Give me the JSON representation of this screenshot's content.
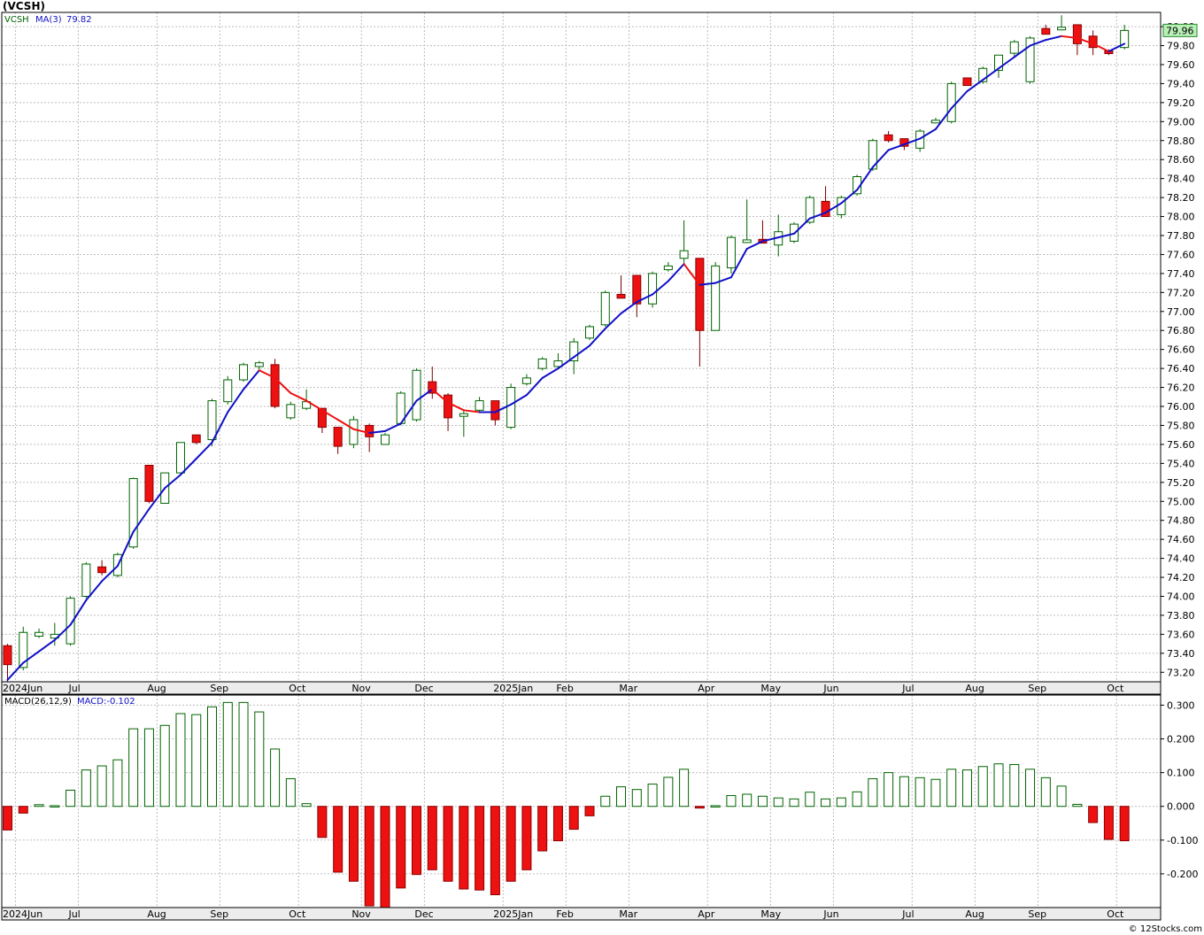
{
  "title": "(VCSH)",
  "watermark": "© 12Stocks.com",
  "price_legend": {
    "symbol": "VCSH",
    "ma_label": "MA(3)",
    "ma_value": "79.82"
  },
  "macd_legend": {
    "label": "MACD(26,12,9)",
    "value_label": "MACD:-0.102"
  },
  "last_price_badge": "79.96",
  "colors": {
    "up": "#006400",
    "down": "#ee1111",
    "ma_up": "#1010c8",
    "ma_down": "#ee1111",
    "grid": "#bdbdbd"
  },
  "price_ticks": [
    "80.00",
    "79.80",
    "79.60",
    "79.40",
    "79.20",
    "79.00",
    "78.80",
    "78.60",
    "78.40",
    "78.20",
    "78.00",
    "77.80",
    "77.60",
    "77.40",
    "77.20",
    "77.00",
    "76.80",
    "76.60",
    "76.40",
    "76.20",
    "76.00",
    "75.80",
    "75.60",
    "75.40",
    "75.20",
    "75.00",
    "74.80",
    "74.60",
    "74.40",
    "74.20",
    "74.00",
    "73.80",
    "73.60",
    "73.40",
    "73.20"
  ],
  "macd_ticks": [
    "0.300",
    "0.200",
    "0.100",
    "0.000",
    "-0.100",
    "-0.200"
  ],
  "month_labels": [
    {
      "label": "2024Jun",
      "week": 1
    },
    {
      "label": "Jul",
      "week": 5
    },
    {
      "label": "Aug",
      "week": 10
    },
    {
      "label": "Sep",
      "week": 14
    },
    {
      "label": "Oct",
      "week": 19
    },
    {
      "label": "Nov",
      "week": 23
    },
    {
      "label": "Dec",
      "week": 27
    },
    {
      "label": "2025Jan",
      "week": 32
    },
    {
      "label": "Feb",
      "week": 36
    },
    {
      "label": "Mar",
      "week": 40
    },
    {
      "label": "Apr",
      "week": 45
    },
    {
      "label": "May",
      "week": 49
    },
    {
      "label": "Jun",
      "week": 53
    },
    {
      "label": "Jul",
      "week": 58
    },
    {
      "label": "Aug",
      "week": 62
    },
    {
      "label": "Sep",
      "week": 66
    },
    {
      "label": "Oct",
      "week": 71
    }
  ],
  "chart_data": [
    {
      "type": "candlestick",
      "ylim": [
        73.1,
        80.15
      ],
      "grid": true,
      "x_unit": "week index (72 weekly candles, Jun 2024 - Oct 2025)",
      "candles": [
        [
          73.48,
          73.5,
          73.1,
          73.28
        ],
        [
          73.25,
          73.68,
          73.22,
          73.62
        ],
        [
          73.58,
          73.66,
          73.56,
          73.62
        ],
        [
          73.56,
          73.72,
          73.48,
          73.6
        ],
        [
          73.5,
          74.0,
          73.48,
          73.98
        ],
        [
          74.0,
          74.36,
          73.98,
          74.34
        ],
        [
          74.31,
          74.38,
          74.22,
          74.25
        ],
        [
          74.22,
          74.46,
          74.2,
          74.44
        ],
        [
          74.52,
          75.25,
          74.5,
          75.24
        ],
        [
          75.38,
          75.38,
          74.98,
          75.0
        ],
        [
          74.98,
          75.3,
          74.98,
          75.3
        ],
        [
          75.3,
          75.62,
          75.28,
          75.62
        ],
        [
          75.7,
          75.7,
          75.6,
          75.62
        ],
        [
          75.65,
          76.08,
          75.58,
          76.06
        ],
        [
          76.05,
          76.32,
          76.02,
          76.28
        ],
        [
          76.28,
          76.46,
          76.26,
          76.44
        ],
        [
          76.42,
          76.48,
          76.38,
          76.46
        ],
        [
          76.44,
          76.5,
          75.98,
          76.0
        ],
        [
          75.88,
          76.05,
          75.86,
          76.02
        ],
        [
          75.98,
          76.18,
          75.96,
          76.05
        ],
        [
          75.98,
          75.98,
          75.72,
          75.78
        ],
        [
          75.78,
          75.78,
          75.5,
          75.58
        ],
        [
          75.6,
          75.9,
          75.56,
          75.86
        ],
        [
          75.8,
          75.82,
          75.52,
          75.68
        ],
        [
          75.6,
          75.72,
          75.6,
          75.7
        ],
        [
          75.82,
          76.16,
          75.8,
          76.14
        ],
        [
          75.86,
          76.4,
          75.84,
          76.38
        ],
        [
          76.26,
          76.42,
          76.08,
          76.14
        ],
        [
          76.12,
          76.14,
          75.74,
          75.88
        ],
        [
          75.9,
          75.96,
          75.68,
          75.92
        ],
        [
          75.96,
          76.1,
          75.94,
          76.06
        ],
        [
          76.06,
          76.06,
          75.8,
          75.86
        ],
        [
          75.78,
          76.24,
          75.76,
          76.2
        ],
        [
          76.24,
          76.34,
          76.22,
          76.3
        ],
        [
          76.4,
          76.52,
          76.38,
          76.5
        ],
        [
          76.42,
          76.56,
          76.4,
          76.48
        ],
        [
          76.48,
          76.72,
          76.34,
          76.68
        ],
        [
          76.72,
          76.86,
          76.7,
          76.84
        ],
        [
          76.86,
          77.22,
          76.84,
          77.2
        ],
        [
          77.18,
          77.38,
          77.14,
          77.14
        ],
        [
          77.38,
          77.38,
          76.94,
          77.08
        ],
        [
          77.08,
          77.42,
          77.04,
          77.4
        ],
        [
          77.44,
          77.52,
          77.42,
          77.48
        ],
        [
          77.56,
          77.96,
          77.5,
          77.64
        ],
        [
          77.56,
          77.56,
          76.42,
          76.8
        ],
        [
          76.8,
          77.52,
          76.8,
          77.48
        ],
        [
          77.46,
          77.8,
          77.4,
          77.78
        ],
        [
          77.74,
          78.18,
          77.72,
          77.74
        ],
        [
          77.76,
          77.96,
          77.72,
          77.72
        ],
        [
          77.7,
          78.02,
          77.58,
          77.84
        ],
        [
          77.74,
          77.94,
          77.72,
          77.92
        ],
        [
          77.94,
          78.22,
          77.92,
          78.2
        ],
        [
          78.16,
          78.32,
          78.0,
          78.0
        ],
        [
          78.02,
          78.22,
          77.98,
          78.2
        ],
        [
          78.24,
          78.44,
          78.22,
          78.42
        ],
        [
          78.5,
          78.82,
          78.48,
          78.8
        ],
        [
          78.86,
          78.9,
          78.78,
          78.8
        ],
        [
          78.82,
          78.82,
          78.7,
          78.74
        ],
        [
          78.72,
          78.92,
          78.68,
          78.9
        ],
        [
          79.0,
          79.04,
          78.98,
          79.0
        ],
        [
          79.0,
          79.42,
          78.98,
          79.4
        ],
        [
          79.46,
          79.46,
          79.38,
          79.38
        ],
        [
          79.42,
          79.58,
          79.4,
          79.56
        ],
        [
          79.54,
          79.7,
          79.46,
          79.7
        ],
        [
          79.72,
          79.86,
          79.68,
          79.84
        ],
        [
          79.42,
          79.9,
          79.4,
          79.88
        ],
        [
          79.98,
          80.02,
          79.92,
          79.92
        ],
        [
          79.98,
          80.12,
          79.96,
          79.98
        ],
        [
          80.02,
          80.02,
          79.7,
          79.82
        ],
        [
          79.9,
          79.96,
          79.7,
          79.78
        ],
        [
          79.74,
          79.76,
          79.7,
          79.72
        ],
        [
          79.78,
          80.02,
          79.76,
          79.96
        ]
      ],
      "ma3": [
        73.12,
        73.3,
        73.42,
        73.54,
        73.7,
        73.96,
        74.16,
        74.32,
        74.68,
        74.92,
        75.14,
        75.28,
        75.45,
        75.62,
        75.94,
        76.18,
        76.38,
        76.3,
        76.14,
        76.06,
        75.96,
        75.86,
        75.76,
        75.72,
        75.74,
        75.82,
        76.06,
        76.18,
        76.04,
        75.96,
        75.94,
        75.94,
        76.02,
        76.12,
        76.3,
        76.4,
        76.52,
        76.64,
        76.82,
        76.98,
        77.1,
        77.18,
        77.32,
        77.5,
        77.28,
        77.3,
        77.36,
        77.66,
        77.74,
        77.78,
        77.82,
        77.98,
        78.04,
        78.14,
        78.28,
        78.52,
        78.7,
        78.76,
        78.82,
        78.92,
        79.14,
        79.32,
        79.44,
        79.56,
        79.68,
        79.8,
        79.86,
        79.9,
        79.88,
        79.82,
        79.74,
        79.82
      ],
      "last": 79.96
    },
    {
      "type": "bar",
      "title": "MACD(26,12,9)",
      "ylim": [
        -0.3,
        0.33
      ],
      "values": [
        -0.07,
        -0.02,
        0.005,
        0.002,
        0.048,
        0.108,
        0.12,
        0.138,
        0.23,
        0.23,
        0.24,
        0.275,
        0.272,
        0.295,
        0.308,
        0.308,
        0.28,
        0.17,
        0.082,
        0.008,
        -0.092,
        -0.195,
        -0.222,
        -0.295,
        -0.31,
        -0.242,
        -0.202,
        -0.188,
        -0.222,
        -0.245,
        -0.248,
        -0.262,
        -0.222,
        -0.188,
        -0.132,
        -0.102,
        -0.068,
        -0.028,
        0.03,
        0.058,
        0.05,
        0.066,
        0.086,
        0.11,
        -0.005,
        0.002,
        0.032,
        0.036,
        0.03,
        0.025,
        0.022,
        0.042,
        0.022,
        0.025,
        0.043,
        0.082,
        0.1,
        0.088,
        0.085,
        0.08,
        0.11,
        0.108,
        0.118,
        0.126,
        0.124,
        0.11,
        0.085,
        0.06,
        0.006,
        -0.048,
        -0.098,
        -0.102
      ]
    }
  ]
}
